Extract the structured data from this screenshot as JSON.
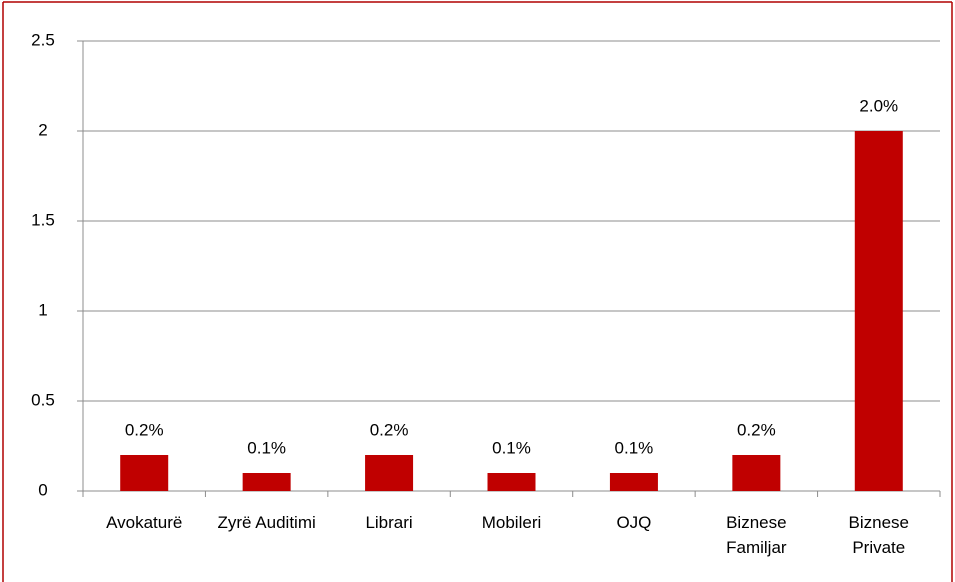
{
  "chart_data": {
    "type": "bar",
    "categories": [
      "Avokaturë",
      "Zyrë Auditimi",
      "Librari",
      "Mobileri",
      "OJQ",
      "Biznese Familjar",
      "Biznese Private"
    ],
    "values": [
      0.2,
      0.1,
      0.2,
      0.1,
      0.1,
      0.2,
      2.0
    ],
    "value_labels": [
      "0.2%",
      "0.1%",
      "0.2%",
      "0.1%",
      "0.1%",
      "0.2%",
      "2.0%"
    ],
    "color": "#c00000",
    "ylim": [
      0,
      2.5
    ],
    "yticks": [
      0,
      0.5,
      1,
      1.5,
      2,
      2.5
    ],
    "grid": true
  }
}
